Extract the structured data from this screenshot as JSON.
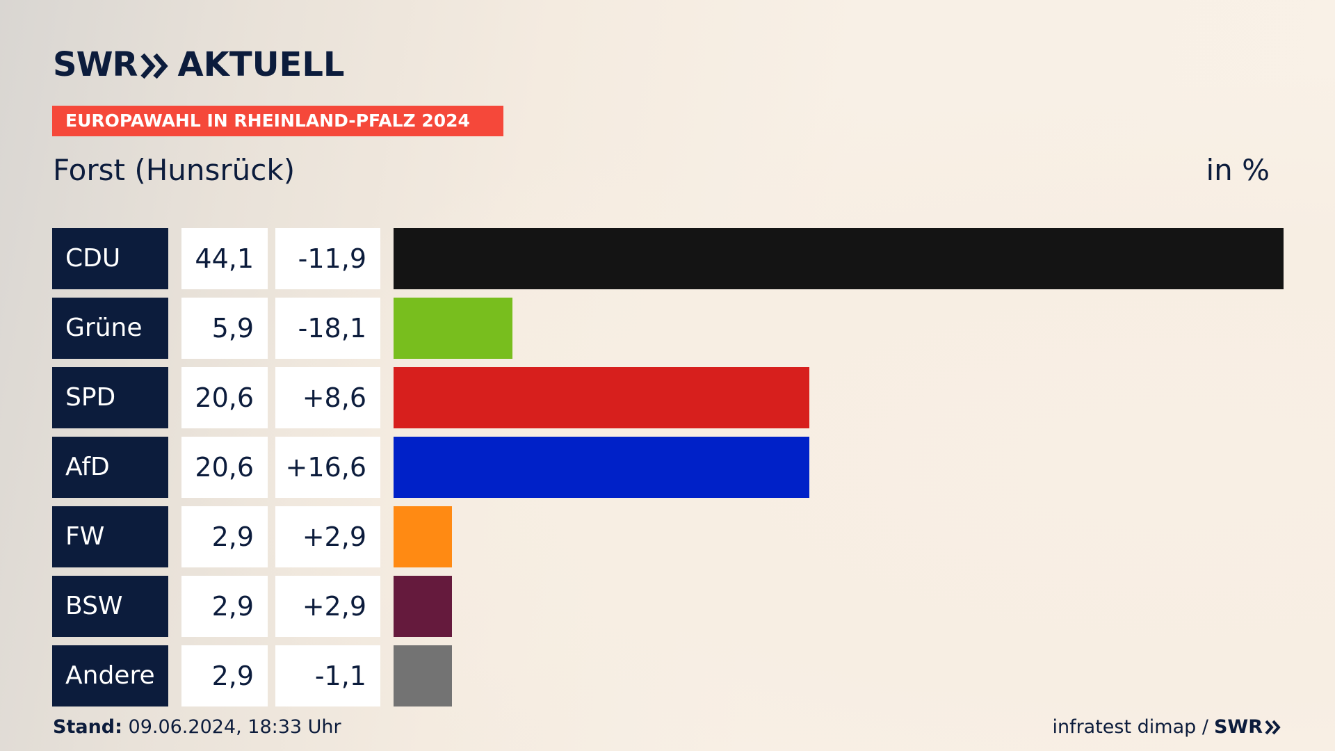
{
  "header": {
    "logo_swr": "SWR",
    "logo_aktuell": "AKTUELL",
    "event": "EUROPAWAHL IN RHEINLAND-PFALZ 2024",
    "place": "Forst (Hunsrück)",
    "unit": "in %"
  },
  "chart_data": {
    "type": "bar",
    "orientation": "horizontal",
    "categories": [
      "CDU",
      "Grüne",
      "SPD",
      "AfD",
      "FW",
      "BSW",
      "Andere"
    ],
    "values": [
      44.1,
      5.9,
      20.6,
      20.6,
      2.9,
      2.9,
      2.9
    ],
    "value_labels": [
      "44,1",
      "5,9",
      "20,6",
      "20,6",
      "2,9",
      "2,9",
      "2,9"
    ],
    "changes": [
      -11.9,
      -18.1,
      8.6,
      16.6,
      2.9,
      2.9,
      -1.1
    ],
    "change_labels": [
      "-11,9",
      "-18,1",
      "+8,6",
      "+16,6",
      "+2,9",
      "+2,9",
      "-1,1"
    ],
    "colors": [
      "#141414",
      "#78be1e",
      "#d71f1d",
      "#0021c8",
      "#ff8a13",
      "#651a3d",
      "#737373"
    ],
    "xlim": [
      0,
      44.1
    ],
    "grid": false,
    "title": "",
    "xlabel": "",
    "ylabel": ""
  },
  "footer": {
    "stand_label": "Stand:",
    "stand_value": "09.06.2024, 18:33 Uhr",
    "source": "infratest dimap /",
    "brand": "SWR"
  },
  "colors": {
    "navy": "#0c1c3c",
    "banner": "#f5483a"
  }
}
